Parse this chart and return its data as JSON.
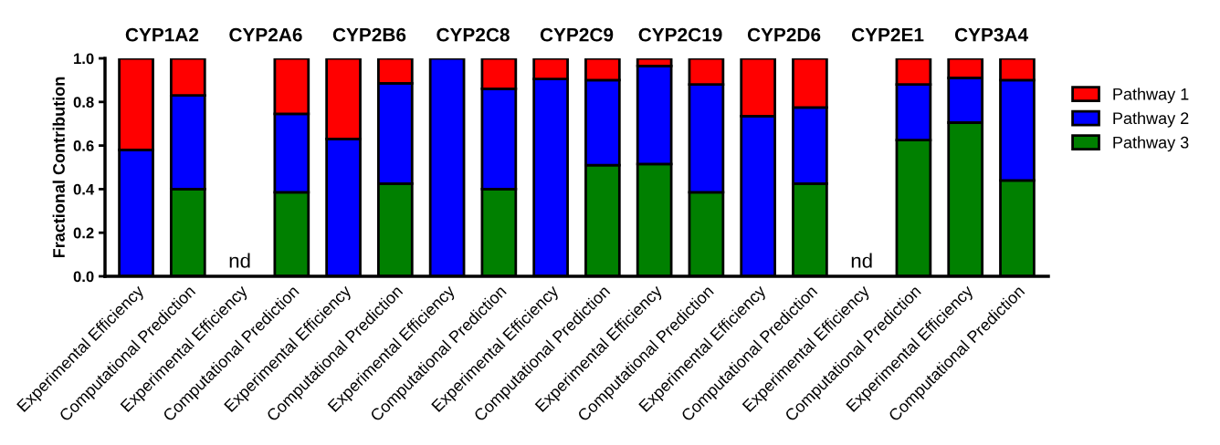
{
  "chart_data": {
    "type": "bar",
    "stacked": true,
    "ylabel": "Fractional Contribution",
    "categories": [
      "Experimental Efficiency",
      "Computational Prediction",
      "Experimental Efficiency",
      "Computational Prediction",
      "Experimental Efficiency",
      "Computational Prediction",
      "Experimental Efficiency",
      "Computational Prediction",
      "Experimental Efficiency",
      "Computational Prediction",
      "Experimental Efficiency",
      "Computational Prediction",
      "Experimental Efficiency",
      "Computational Prediction",
      "Experimental Efficiency",
      "Computational Prediction",
      "Experimental Efficiency",
      "Computational Prediction"
    ],
    "series": [
      {
        "name": "Pathway 3",
        "color": "#008000",
        "values": [
          0,
          0.4,
          null,
          0.385,
          0,
          0.425,
          0,
          0.4,
          0,
          0.51,
          0.515,
          0.385,
          0,
          0.425,
          null,
          0.625,
          0.705,
          0.44
        ],
        "value_labels": [
          null,
          null,
          "nd",
          null,
          null,
          null,
          null,
          null,
          null,
          null,
          null,
          null,
          null,
          null,
          "nd",
          null,
          null,
          null
        ]
      },
      {
        "name": "Pathway 2",
        "color": "#0000ff",
        "values": [
          0.58,
          0.43,
          null,
          0.36,
          0.63,
          0.46,
          1.0,
          0.46,
          0.905,
          0.39,
          0.45,
          0.495,
          0.735,
          0.35,
          null,
          0.255,
          0.205,
          0.46
        ]
      },
      {
        "name": "Pathway 1",
        "color": "#ff0000",
        "values": [
          0.42,
          0.17,
          null,
          0.255,
          0.37,
          0.115,
          0,
          0.14,
          0.095,
          0.1,
          0.035,
          0.12,
          0.265,
          0.225,
          null,
          0.12,
          0.09,
          0.1
        ]
      }
    ],
    "annotations": [
      "CYP1A2",
      "CYP2A6",
      "CYP2B6",
      "CYP2C8",
      "CYP2C9",
      "CYP2C19",
      "CYP2D6",
      "CYP2E1",
      "CYP3A4"
    ],
    "ylim": [
      0,
      1.0
    ],
    "yticks": [
      {
        "value": 0,
        "label": "0.0"
      },
      {
        "value": 0.2,
        "label": "0.2"
      },
      {
        "value": 0.4,
        "label": "0.4"
      },
      {
        "value": 0.6,
        "label": "0.6"
      },
      {
        "value": 0.8,
        "label": "0.8"
      },
      {
        "value": 1.0,
        "label": "1.0"
      }
    ],
    "grid": false,
    "legend": "right"
  }
}
